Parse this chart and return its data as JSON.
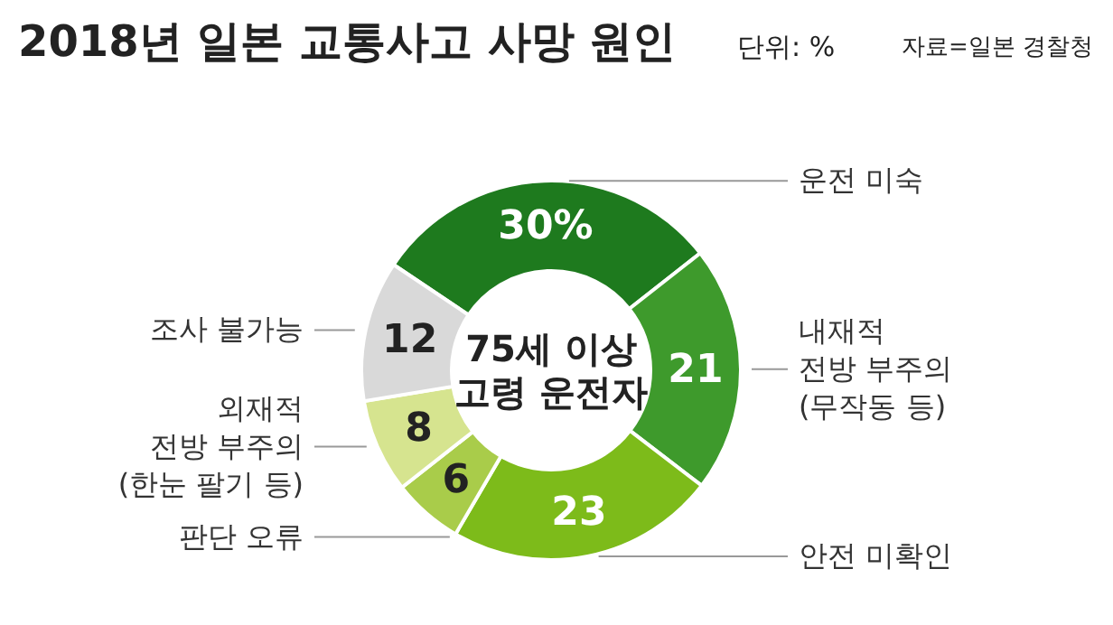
{
  "chart_data": {
    "type": "donut",
    "title": "2018년 일본 교통사고 사망 원인",
    "subtitle": "단위: %",
    "categories": [
      "운전 미숙",
      "내재적\n전방 부주의\n(무작동 등)",
      "안전 미확인",
      "판단 오류",
      "외재적\n전방 부주의\n(한눈 팔기 등)",
      "조사 불가능"
    ],
    "values": [
      30,
      21,
      23,
      6,
      8,
      12
    ],
    "colors": [
      "#1e7a1e",
      "#3e9a2c",
      "#7dbb1a",
      "#a9cc4a",
      "#d6e48f",
      "#d9d9d9"
    ],
    "value_labels": [
      "30%",
      "21",
      "23",
      "6",
      "8",
      "12"
    ],
    "annotations": [
      "75세 이상\n고령 운전자",
      "자료=일본 경찰청"
    ]
  }
}
